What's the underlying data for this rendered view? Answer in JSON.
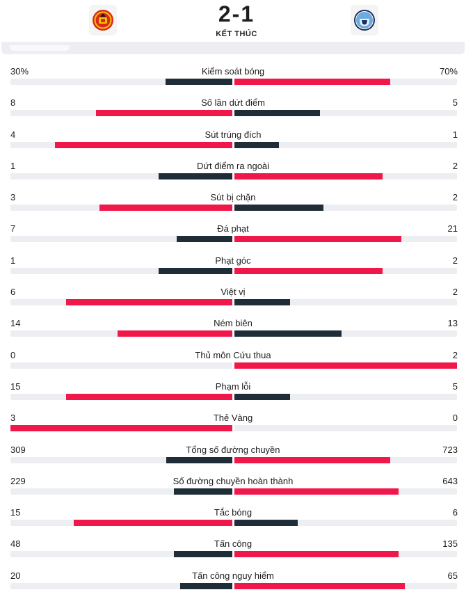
{
  "match": {
    "home_team": "Manchester United",
    "away_team": "Manchester City",
    "score": "2-1",
    "status": "KẾT THÚC"
  },
  "colors": {
    "leader": "#f0184a",
    "trailer": "#1f2d38",
    "track": "#eceef1",
    "home_crest": "#da291c",
    "away_crest": "#6cabdd"
  },
  "icons": {
    "home_logo": "man-utd-crest-icon",
    "away_logo": "man-city-crest-icon"
  },
  "stats": [
    {
      "label": "Kiểm soát bóng",
      "home": "30%",
      "away": "70%",
      "home_val": 30,
      "away_val": 70
    },
    {
      "label": "Số lần dứt điểm",
      "home": "8",
      "away": "5",
      "home_val": 8,
      "away_val": 5
    },
    {
      "label": "Sút trúng đích",
      "home": "4",
      "away": "1",
      "home_val": 4,
      "away_val": 1
    },
    {
      "label": "Dứt điểm ra ngoài",
      "home": "1",
      "away": "2",
      "home_val": 1,
      "away_val": 2
    },
    {
      "label": "Sút bị chặn",
      "home": "3",
      "away": "2",
      "home_val": 3,
      "away_val": 2
    },
    {
      "label": "Đá phạt",
      "home": "7",
      "away": "21",
      "home_val": 7,
      "away_val": 21
    },
    {
      "label": "Phạt góc",
      "home": "1",
      "away": "2",
      "home_val": 1,
      "away_val": 2
    },
    {
      "label": "Việt vị",
      "home": "6",
      "away": "2",
      "home_val": 6,
      "away_val": 2
    },
    {
      "label": "Ném biên",
      "home": "14",
      "away": "13",
      "home_val": 14,
      "away_val": 13
    },
    {
      "label": "Thủ môn Cứu thua",
      "home": "0",
      "away": "2",
      "home_val": 0,
      "away_val": 2
    },
    {
      "label": "Phạm lỗi",
      "home": "15",
      "away": "5",
      "home_val": 15,
      "away_val": 5
    },
    {
      "label": "Thẻ Vàng",
      "home": "3",
      "away": "0",
      "home_val": 3,
      "away_val": 0
    },
    {
      "label": "Tổng số đường chuyền",
      "home": "309",
      "away": "723",
      "home_val": 309,
      "away_val": 723
    },
    {
      "label": "Số đường chuyền hoàn thành",
      "home": "229",
      "away": "643",
      "home_val": 229,
      "away_val": 643
    },
    {
      "label": "Tắc bóng",
      "home": "15",
      "away": "6",
      "home_val": 15,
      "away_val": 6
    },
    {
      "label": "Tấn công",
      "home": "48",
      "away": "135",
      "home_val": 48,
      "away_val": 135
    },
    {
      "label": "Tấn công nguy hiểm",
      "home": "20",
      "away": "65",
      "home_val": 20,
      "away_val": 65
    }
  ]
}
